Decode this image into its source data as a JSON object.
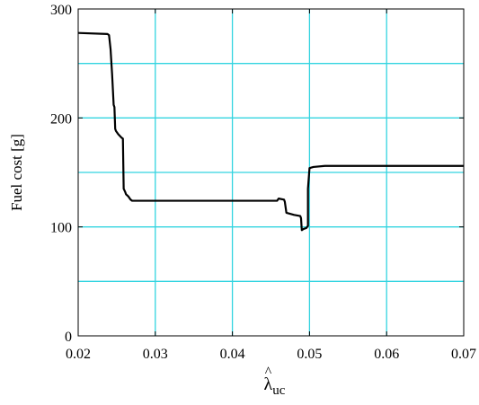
{
  "chart_data": {
    "type": "line",
    "title": "",
    "xlabel": {
      "symbol": "λ",
      "accent": "^",
      "subscript": "uc"
    },
    "ylabel": "Fuel cost [g]",
    "xlim": [
      0.02,
      0.07
    ],
    "ylim": [
      0,
      300
    ],
    "x_ticks": [
      0.02,
      0.03,
      0.04,
      0.05,
      0.06,
      0.07
    ],
    "x_tick_labels": [
      "0.02",
      "0.03",
      "0.04",
      "0.05",
      "0.06",
      "0.07"
    ],
    "y_ticks": [
      0,
      100,
      200,
      300
    ],
    "y_tick_labels": [
      "0",
      "100",
      "200",
      "300"
    ],
    "x_gridlines": [
      0.03,
      0.04,
      0.05,
      0.06
    ],
    "y_gridlines": [
      50,
      100,
      150,
      200,
      250
    ],
    "grid": true,
    "colors": {
      "grid": "#33d4e0",
      "line": "#000000",
      "axes": "#000000"
    },
    "series": [
      {
        "x": [
          0.02,
          0.0238,
          0.024,
          0.0242,
          0.0244,
          0.0246,
          0.0247,
          0.0248,
          0.0249,
          0.0252,
          0.0256,
          0.0258,
          0.0259,
          0.0261,
          0.0262,
          0.0265,
          0.0268,
          0.027,
          0.03,
          0.04,
          0.0458,
          0.046,
          0.0467,
          0.0468,
          0.047,
          0.048,
          0.0488,
          0.0489,
          0.049,
          0.0492,
          0.0496,
          0.0497,
          0.0498,
          0.0498,
          0.05,
          0.0505,
          0.052,
          0.06,
          0.07
        ],
        "y": [
          278,
          277,
          276,
          263,
          240,
          212,
          210,
          190,
          188,
          185,
          182,
          181,
          135,
          132,
          130,
          128,
          125,
          124,
          124,
          124,
          124,
          126,
          125,
          123,
          113,
          111,
          110,
          108,
          97,
          98,
          99,
          100,
          101,
          135,
          154,
          155,
          156,
          156,
          156
        ]
      }
    ]
  }
}
